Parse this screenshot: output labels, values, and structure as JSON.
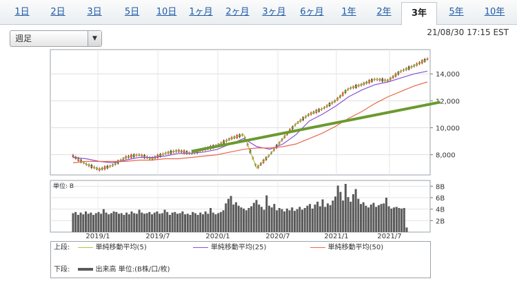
{
  "tabs": [
    "1日",
    "2日",
    "3日",
    "5日",
    "10日",
    "1ヶ月",
    "2ヶ月",
    "3ヶ月",
    "6ヶ月",
    "1年",
    "2年",
    "3年",
    "5年",
    "10年"
  ],
  "active_tab": "3年",
  "period_select": {
    "value": "週足"
  },
  "timestamp": "21/08/30 17:15 EST",
  "price_axis": [
    "14,000",
    "12,000",
    "10,000",
    "8,000"
  ],
  "volume_axis": [
    "8B",
    "6B",
    "4B",
    "2B"
  ],
  "volume_unit_label": "単位: B",
  "date_axis": [
    "2019/1",
    "2019/7",
    "2020/1",
    "2020/7",
    "2021/1",
    "2021/7"
  ],
  "legend": {
    "upper_label": "上段:",
    "lower_label": "下段:",
    "sma5": "単純移動平均(5)",
    "sma25": "単純移動平均(25)",
    "sma50": "単純移動平均(50)",
    "volume": "出来高 単位:(B株/口/枚)"
  },
  "colors": {
    "up_candle": "#d93025",
    "down_candle": "#2f2f2f",
    "sma5": "#a6c93a",
    "sma25": "#8a4fd1",
    "sma50": "#e8674a",
    "trendline": "#6a9a2e",
    "volume": "#5a5a5a"
  },
  "chart_data": [
    {
      "type": "line",
      "title": "",
      "ylim": [
        6500,
        15800
      ],
      "y_ticks": [
        8000,
        10000,
        12000,
        14000
      ],
      "x_ticks": [
        "2019/1",
        "2019/7",
        "2020/1",
        "2020/7",
        "2021/1",
        "2021/7"
      ],
      "grid": true,
      "series": [
        {
          "name": "単純移動平均(5)",
          "values": [
            7900,
            7300,
            6900,
            7200,
            7800,
            8000,
            7700,
            8100,
            8300,
            8100,
            8400,
            8700,
            9200,
            9500,
            7000,
            8000,
            9200,
            10300,
            11000,
            11400,
            12000,
            12900,
            13200,
            13600,
            13500,
            14200,
            14600,
            15100
          ]
        },
        {
          "name": "単純移動平均(25)",
          "values": [
            7800,
            7700,
            7500,
            7400,
            7600,
            7800,
            7800,
            7900,
            8100,
            8100,
            8200,
            8400,
            8800,
            9200,
            8600,
            8400,
            8800,
            9500,
            10500,
            11000,
            11600,
            12300,
            12800,
            13200,
            13400,
            13700,
            14000,
            14200
          ]
        },
        {
          "name": "単純移動平均(50)",
          "values": [
            7400,
            7500,
            7500,
            7500,
            7500,
            7600,
            7600,
            7700,
            7700,
            7800,
            7900,
            8000,
            8200,
            8400,
            8500,
            8500,
            8600,
            8800,
            9200,
            9600,
            10100,
            10700,
            11200,
            11800,
            12300,
            12700,
            13100,
            13400
          ]
        }
      ]
    },
    {
      "type": "bar",
      "title": "",
      "ylabel": "単位: B",
      "ylim": [
        0,
        9
      ],
      "values": [
        3.3,
        3.5,
        3.0,
        3.4,
        3.1,
        3.6,
        3.2,
        3.4,
        3.0,
        3.3,
        3.5,
        3.2,
        4.0,
        3.4,
        3.1,
        3.3,
        3.6,
        3.5,
        3.2,
        3.3,
        3.0,
        3.4,
        3.1,
        3.6,
        3.3,
        3.2,
        3.9,
        3.4,
        3.2,
        3.3,
        3.5,
        3.1,
        3.4,
        3.6,
        3.2,
        3.3,
        3.9,
        3.5,
        3.0,
        3.4,
        3.5,
        3.2,
        3.3,
        3.6,
        3.1,
        3.2,
        3.0,
        3.5,
        3.3,
        3.0,
        3.4,
        3.1,
        3.6,
        3.2,
        4.2,
        3.4,
        3.1,
        3.3,
        3.5,
        3.8,
        5.0,
        5.8,
        6.3,
        4.8,
        5.2,
        4.6,
        4.3,
        4.1,
        3.8,
        4.2,
        4.5,
        5.1,
        5.6,
        4.8,
        4.4,
        3.9,
        6.4,
        4.6,
        4.3,
        4.9,
        3.8,
        4.2,
        4.0,
        3.6,
        4.1,
        3.8,
        4.3,
        3.7,
        4.0,
        4.4,
        3.9,
        4.2,
        4.6,
        4.9,
        4.1,
        4.8,
        5.3,
        4.5,
        5.7,
        4.4,
        5.0,
        4.7,
        5.5,
        6.2,
        8.1,
        7.0,
        5.5,
        8.4,
        6.1,
        5.3,
        6.6,
        7.5,
        5.8,
        4.9,
        5.2,
        4.6,
        4.3,
        4.8,
        5.1,
        4.4,
        4.7,
        4.9,
        5.0,
        6.0,
        4.5,
        4.1,
        4.3,
        4.4,
        4.2,
        4.1,
        4.2,
        0.8
      ]
    }
  ],
  "trendline": {
    "start": [
      50,
      8250
    ],
    "end": [
      135,
      11900
    ]
  }
}
